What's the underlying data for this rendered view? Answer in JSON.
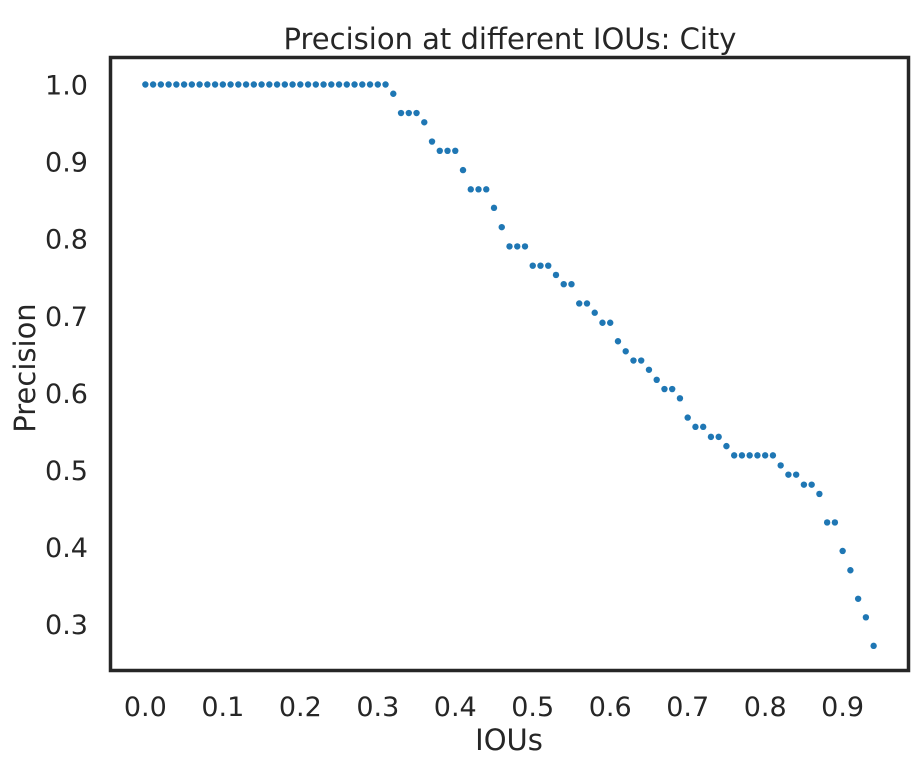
{
  "chart_data": {
    "type": "scatter",
    "title": "Precision at different IOUs: City",
    "xlabel": "IOUs",
    "ylabel": "Precision",
    "xlim": [
      -0.045,
      0.985
    ],
    "ylim": [
      0.24,
      1.035
    ],
    "grid": false,
    "marker_color": "#1f77b4",
    "x_ticks": [
      0.0,
      0.1,
      0.2,
      0.3,
      0.4,
      0.5,
      0.6,
      0.7,
      0.8,
      0.9
    ],
    "x_tick_labels": [
      "0.0",
      "0.1",
      "0.2",
      "0.3",
      "0.4",
      "0.5",
      "0.6",
      "0.7",
      "0.8",
      "0.9"
    ],
    "y_ticks": [
      0.3,
      0.4,
      0.5,
      0.6,
      0.7,
      0.8,
      0.9,
      1.0
    ],
    "y_tick_labels": [
      "0.3",
      "0.4",
      "0.5",
      "0.6",
      "0.7",
      "0.8",
      "0.9",
      "1.0"
    ],
    "series": [
      {
        "x": [
          0.0,
          0.01,
          0.02,
          0.03,
          0.04,
          0.05,
          0.06,
          0.07,
          0.08,
          0.09,
          0.1,
          0.11,
          0.12,
          0.13,
          0.14,
          0.15,
          0.16,
          0.17,
          0.18,
          0.19,
          0.2,
          0.21,
          0.22,
          0.23,
          0.24,
          0.25,
          0.26,
          0.27,
          0.28,
          0.29,
          0.3,
          0.31,
          0.32,
          0.33,
          0.34,
          0.35,
          0.36,
          0.37,
          0.38,
          0.39,
          0.4,
          0.41,
          0.42,
          0.43,
          0.44,
          0.45,
          0.46,
          0.47,
          0.48,
          0.49,
          0.5,
          0.51,
          0.52,
          0.53,
          0.54,
          0.55,
          0.56,
          0.57,
          0.58,
          0.59,
          0.6,
          0.61,
          0.62,
          0.63,
          0.64,
          0.65,
          0.66,
          0.67,
          0.68,
          0.69,
          0.7,
          0.71,
          0.72,
          0.73,
          0.74,
          0.75,
          0.76,
          0.77,
          0.78,
          0.79,
          0.8,
          0.81,
          0.82,
          0.83,
          0.84,
          0.85,
          0.86,
          0.87,
          0.88,
          0.89,
          0.9,
          0.91,
          0.92,
          0.93,
          0.94
        ],
        "y": [
          1.0,
          1.0,
          1.0,
          1.0,
          1.0,
          1.0,
          1.0,
          1.0,
          1.0,
          1.0,
          1.0,
          1.0,
          1.0,
          1.0,
          1.0,
          1.0,
          1.0,
          1.0,
          1.0,
          1.0,
          1.0,
          1.0,
          1.0,
          1.0,
          1.0,
          1.0,
          1.0,
          1.0,
          1.0,
          1.0,
          1.0,
          1.0,
          0.988,
          0.963,
          0.963,
          0.963,
          0.951,
          0.926,
          0.914,
          0.914,
          0.914,
          0.889,
          0.864,
          0.864,
          0.864,
          0.84,
          0.815,
          0.79,
          0.79,
          0.79,
          0.765,
          0.765,
          0.765,
          0.753,
          0.741,
          0.741,
          0.716,
          0.716,
          0.704,
          0.691,
          0.691,
          0.667,
          0.654,
          0.642,
          0.642,
          0.63,
          0.617,
          0.605,
          0.605,
          0.593,
          0.568,
          0.556,
          0.556,
          0.543,
          0.543,
          0.531,
          0.519,
          0.519,
          0.519,
          0.519,
          0.519,
          0.519,
          0.506,
          0.494,
          0.494,
          0.481,
          0.481,
          0.469,
          0.432,
          0.432,
          0.395,
          0.37,
          0.333,
          0.309,
          0.272
        ]
      }
    ]
  }
}
